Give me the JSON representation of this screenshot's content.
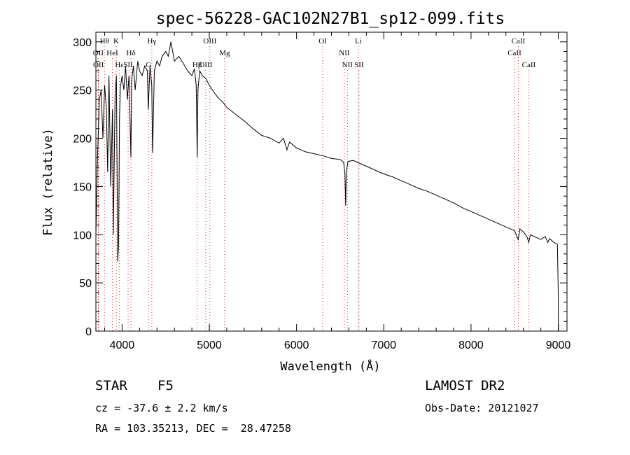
{
  "chart_data": {
    "type": "line",
    "title": "spec-56228-GAC102N27B1_sp12-099.fits",
    "xlabel": "Wavelength (Å)",
    "ylabel": "Flux (relative)",
    "xlim": [
      3700,
      9100
    ],
    "ylim": [
      0,
      310
    ],
    "xticks": [
      4000,
      5000,
      6000,
      7000,
      8000,
      9000
    ],
    "yticks": [
      0,
      50,
      100,
      150,
      200,
      250,
      300
    ],
    "grid": false,
    "series": [
      {
        "x": [
          3700,
          3720,
          3740,
          3760,
          3780,
          3800,
          3820,
          3835,
          3850,
          3870,
          3890,
          3900,
          3920,
          3935,
          3950,
          3960,
          3970,
          3980,
          4000,
          4020,
          4040,
          4060,
          4080,
          4101,
          4110,
          4130,
          4150,
          4180,
          4200,
          4230,
          4260,
          4290,
          4300,
          4320,
          4340,
          4350,
          4370,
          4400,
          4430,
          4460,
          4500,
          4530,
          4560,
          4600,
          4650,
          4700,
          4750,
          4800,
          4830,
          4850,
          4861,
          4870,
          4890,
          4920,
          4960,
          5000,
          5050,
          5100,
          5150,
          5200,
          5300,
          5400,
          5500,
          5600,
          5700,
          5800,
          5850,
          5890,
          5900,
          5920,
          6000,
          6100,
          6200,
          6300,
          6400,
          6500,
          6540,
          6555,
          6563,
          6570,
          6590,
          6650,
          6700,
          6800,
          6900,
          7000,
          7100,
          7200,
          7300,
          7400,
          7500,
          7600,
          7700,
          7800,
          7900,
          8000,
          8100,
          8200,
          8300,
          8400,
          8500,
          8540,
          8560,
          8600,
          8640,
          8662,
          8680,
          8750,
          8800,
          8850,
          8880,
          8900,
          8950,
          8990,
          9000,
          9002
        ],
        "y": [
          100,
          185,
          240,
          250,
          200,
          255,
          230,
          165,
          265,
          150,
          230,
          100,
          245,
          265,
          72,
          90,
          220,
          252,
          265,
          250,
          275,
          240,
          265,
          180,
          260,
          275,
          250,
          280,
          270,
          265,
          275,
          270,
          230,
          275,
          255,
          185,
          270,
          280,
          275,
          285,
          290,
          285,
          300,
          280,
          285,
          278,
          270,
          265,
          272,
          255,
          180,
          250,
          270,
          265,
          262,
          255,
          248,
          242,
          238,
          232,
          225,
          218,
          210,
          203,
          200,
          195,
          200,
          188,
          191,
          196,
          190,
          186,
          184,
          182,
          179,
          178,
          175,
          163,
          130,
          165,
          176,
          177,
          175,
          171,
          167,
          163,
          160,
          156,
          152,
          148,
          145,
          141,
          137,
          133,
          128,
          124,
          120,
          116,
          112,
          108,
          104,
          95,
          106,
          103,
          98,
          92,
          100,
          97,
          95,
          98,
          92,
          96,
          92,
          90,
          40,
          0
        ]
      }
    ],
    "spectral_lines": [
      {
        "name": "Hθ",
        "wavelength": 3798,
        "row": 1
      },
      {
        "name": "K",
        "wavelength": 3934,
        "row": 1
      },
      {
        "name": "Hγ",
        "wavelength": 4341,
        "row": 1
      },
      {
        "name": "OIII",
        "wavelength": 5007,
        "row": 1
      },
      {
        "name": "OI",
        "wavelength": 6300,
        "row": 1
      },
      {
        "name": "Li",
        "wavelength": 6708,
        "row": 1
      },
      {
        "name": "CaII",
        "wavelength": 8542,
        "row": 1
      },
      {
        "name": "OII",
        "wavelength": 3727,
        "row": 2
      },
      {
        "name": "HeI",
        "wavelength": 3889,
        "row": 2
      },
      {
        "name": "Hδ",
        "wavelength": 4102,
        "row": 2
      },
      {
        "name": "Mg",
        "wavelength": 5175,
        "row": 2
      },
      {
        "name": "NII",
        "wavelength": 6548,
        "row": 2
      },
      {
        "name": "CaII",
        "wavelength": 8498,
        "row": 2
      },
      {
        "name": "OII",
        "wavelength": 3729,
        "row": 3
      },
      {
        "name": "Hε",
        "wavelength": 3970,
        "row": 3
      },
      {
        "name": "SII",
        "wavelength": 4069,
        "row": 3
      },
      {
        "name": "G",
        "wavelength": 4304,
        "row": 3
      },
      {
        "name": "Hβ",
        "wavelength": 4861,
        "row": 3
      },
      {
        "name": "OIII",
        "wavelength": 4959,
        "row": 3
      },
      {
        "name": "NII",
        "wavelength": 6583,
        "row": 3
      },
      {
        "name": "SII",
        "wavelength": 6716,
        "row": 3
      },
      {
        "name": "CaII",
        "wavelength": 8662,
        "row": 3
      }
    ]
  },
  "info": {
    "class_label": "STAR",
    "subclass": "F5",
    "survey": "LAMOST DR2",
    "cz": "cz = -37.6 ± 2.2 km/s",
    "obs_date": "Obs-Date: 20121027",
    "coords": "RA = 103.35213, DEC =  28.47258"
  }
}
